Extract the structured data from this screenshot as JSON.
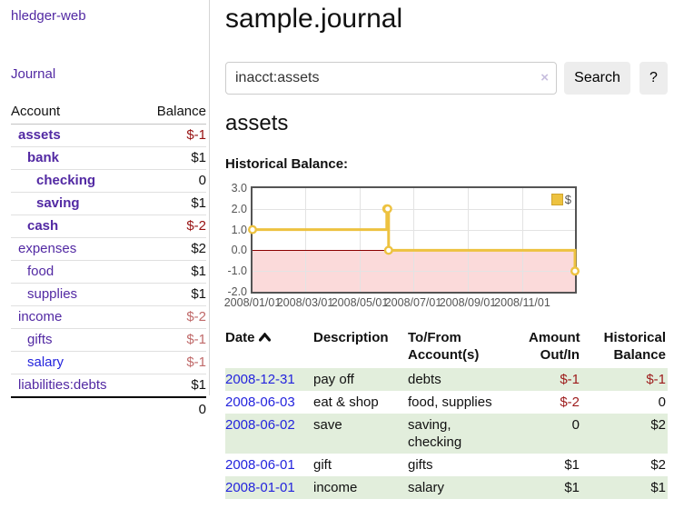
{
  "app": {
    "title": "hledger-web"
  },
  "sidebar": {
    "journal_link": "Journal",
    "accounts_table": {
      "account_header": "Account",
      "balance_header": "Balance",
      "rows": [
        {
          "name": "assets",
          "indent": 1,
          "bold": true,
          "blue": false,
          "balance": "$-1",
          "balance_class": "neg-strong"
        },
        {
          "name": "bank",
          "indent": 2,
          "bold": true,
          "blue": false,
          "balance": "$1",
          "balance_class": ""
        },
        {
          "name": "checking",
          "indent": 3,
          "bold": true,
          "blue": false,
          "balance": "0",
          "balance_class": ""
        },
        {
          "name": "saving",
          "indent": 3,
          "bold": true,
          "blue": false,
          "balance": "$1",
          "balance_class": ""
        },
        {
          "name": "cash",
          "indent": 2,
          "bold": true,
          "blue": false,
          "balance": "$-2",
          "balance_class": "neg-strong"
        },
        {
          "name": "expenses",
          "indent": 1,
          "bold": false,
          "blue": false,
          "balance": "$2",
          "balance_class": ""
        },
        {
          "name": "food",
          "indent": 2,
          "bold": false,
          "blue": false,
          "balance": "$1",
          "balance_class": ""
        },
        {
          "name": "supplies",
          "indent": 2,
          "bold": false,
          "blue": false,
          "balance": "$1",
          "balance_class": ""
        },
        {
          "name": "income",
          "indent": 1,
          "bold": false,
          "blue": false,
          "balance": "$-2",
          "balance_class": "neg-soft"
        },
        {
          "name": "gifts",
          "indent": 2,
          "bold": false,
          "blue": false,
          "balance": "$-1",
          "balance_class": "neg-soft"
        },
        {
          "name": "salary",
          "indent": 2,
          "bold": false,
          "blue": true,
          "balance": "$-1",
          "balance_class": "neg-soft"
        },
        {
          "name": "liabilities:debts",
          "indent": 1,
          "bold": false,
          "blue": false,
          "balance": "$1",
          "balance_class": ""
        }
      ],
      "total": "0"
    }
  },
  "main": {
    "title": "sample.journal",
    "search": {
      "value": "inacct:assets",
      "clear_icon": "×",
      "button_label": "Search",
      "help_label": "?"
    },
    "account_heading": "assets",
    "chart_label": "Historical Balance:"
  },
  "chart_data": {
    "type": "line",
    "title": "Historical Balance:",
    "step": true,
    "series": [
      {
        "name": "$",
        "color": "#edc240",
        "points": [
          [
            "2008-01-01",
            1
          ],
          [
            "2008-06-01",
            2
          ],
          [
            "2008-06-02",
            2
          ],
          [
            "2008-06-03",
            0
          ],
          [
            "2008-12-31",
            -1
          ]
        ]
      }
    ],
    "x_start": "2008-01-01",
    "x_span_days": 365,
    "x_ticks": [
      "2008/01/01",
      "2008/03/01",
      "2008/05/01",
      "2008/07/01",
      "2008/09/01",
      "2008/11/01"
    ],
    "y_ticks": [
      "3.0",
      "2.0",
      "1.0",
      "0.0",
      "-1.0",
      "-2.0"
    ],
    "ylim": [
      -2,
      3
    ],
    "grid": true,
    "legend_position": "top-right",
    "legend": [
      "$"
    ],
    "negative_region_color": "#fbdada",
    "zero_line_color": "#8b0000"
  },
  "register_table": {
    "headers": {
      "date": "Date",
      "description": "Description",
      "accounts": "To/From\nAccount(s)",
      "amount": "Amount\nOut/In",
      "balance": "Historical\nBalance"
    },
    "rows": [
      {
        "date": "2008-12-31",
        "description": "pay off",
        "accounts": "debts",
        "amount": "$-1",
        "amount_neg": true,
        "balance": "$-1",
        "balance_neg": true,
        "stripe": true
      },
      {
        "date": "2008-06-03",
        "description": "eat & shop",
        "accounts": "food, supplies",
        "amount": "$-2",
        "amount_neg": true,
        "balance": "0",
        "balance_neg": false,
        "stripe": false
      },
      {
        "date": "2008-06-02",
        "description": "save",
        "accounts": "saving,\nchecking",
        "amount": "0",
        "amount_neg": false,
        "balance": "$2",
        "balance_neg": false,
        "stripe": true
      },
      {
        "date": "2008-06-01",
        "description": "gift",
        "accounts": "gifts",
        "amount": "$1",
        "amount_neg": false,
        "balance": "$2",
        "balance_neg": false,
        "stripe": false
      },
      {
        "date": "2008-01-01",
        "description": "income",
        "accounts": "salary",
        "amount": "$1",
        "amount_neg": false,
        "balance": "$1",
        "balance_neg": false,
        "stripe": true
      }
    ]
  },
  "colors": {
    "link_purple": "#5229a3",
    "link_blue": "#2424dd",
    "negative_strong": "#971111",
    "negative_soft": "#c06a6a",
    "stripe_green": "#e2eedc",
    "chart_line_gold": "#edc240",
    "chart_negative_pink": "#fbdada",
    "zero_line_red": "#8b0000"
  }
}
